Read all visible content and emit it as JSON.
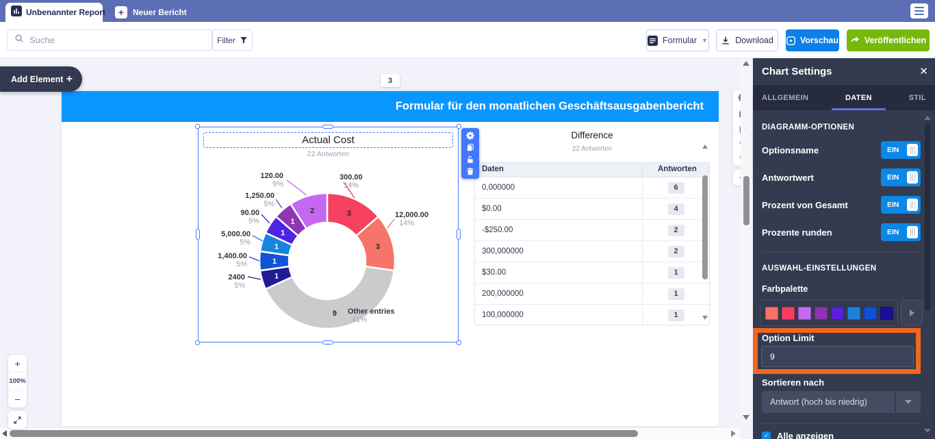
{
  "tabbar": {
    "active_tab": "Unbenannter Report",
    "new_tab_label": "Neuer Bericht"
  },
  "toolbar": {
    "search_placeholder": "Suche",
    "filter_label": "Filter",
    "form_button": "Formular",
    "download_button": "Download",
    "preview_button": "Vorschau",
    "publish_button": "Veröffentlichen"
  },
  "workspace": {
    "add_element_label": "Add Element",
    "page_number": "3",
    "banner_title": "Formular für den monatlichen Geschäftsausgabenbericht",
    "zoom_level": "100%"
  },
  "chart_data": {
    "type": "pie",
    "donut": true,
    "title": "Actual Cost",
    "subtitle": "22 Antworten",
    "total_responses": 22,
    "legend_position": "callout-labels",
    "slices": [
      {
        "label": "300.00",
        "value": 3,
        "pct": "14%",
        "color": "#f5405f"
      },
      {
        "label": "12,000.00",
        "value": 3,
        "pct": "14%",
        "color": "#f7746b"
      },
      {
        "label": "Other entries",
        "value": 9,
        "pct": "41%",
        "color": "#cbcbcd"
      },
      {
        "label": "2400",
        "value": 1,
        "pct": "5%",
        "color": "#201a96"
      },
      {
        "label": "1,400.00",
        "value": 1,
        "pct": "5%",
        "color": "#1353d6"
      },
      {
        "label": "5,000.00",
        "value": 1,
        "pct": "5%",
        "color": "#1586e0"
      },
      {
        "label": "90.00",
        "value": 1,
        "pct": "5%",
        "color": "#4c25e2"
      },
      {
        "label": "1,250.00",
        "value": 1,
        "pct": "5%",
        "color": "#8f35b5"
      },
      {
        "label": "120.00",
        "value": 2,
        "pct": "9%",
        "color": "#c468f2"
      }
    ]
  },
  "table_widget": {
    "title": "Difference",
    "subtitle": "22 Antworten",
    "columns": [
      "Daten",
      "Antworten"
    ],
    "rows": [
      {
        "daten": "0,000000",
        "antworten": "6"
      },
      {
        "daten": "$0.00",
        "antworten": "4"
      },
      {
        "daten": "-$250.00",
        "antworten": "2"
      },
      {
        "daten": "300,000000",
        "antworten": "2"
      },
      {
        "daten": "$30.00",
        "antworten": "1"
      },
      {
        "daten": "200,000000",
        "antworten": "1"
      },
      {
        "daten": "100,000000",
        "antworten": "1"
      }
    ]
  },
  "settings_panel": {
    "title": "Chart Settings",
    "close_label": "✕",
    "tabs": [
      "ALLGEMEIN",
      "DATEN",
      "STIL"
    ],
    "active_tab": "DATEN",
    "section1_title": "DIAGRAMM-OPTIONEN",
    "toggles": [
      {
        "label": "Optionsname",
        "state": "EIN"
      },
      {
        "label": "Antwortwert",
        "state": "EIN"
      },
      {
        "label": "Prozent von Gesamt",
        "state": "EIN"
      },
      {
        "label": "Prozente runden",
        "state": "EIN"
      }
    ],
    "section2_title": "AUSWAHL-EINSTELLUNGEN",
    "palette_label": "Farbpalette",
    "palette_colors": [
      "#f77264",
      "#fb3b64",
      "#c46af2",
      "#8c35b0",
      "#5b1fde",
      "#1b82dc",
      "#0e52d8",
      "#191193"
    ],
    "option_limit_label": "Option Limit",
    "option_limit_value": "9",
    "sort_label": "Sortieren nach",
    "sort_value": "Antwort (hoch bis niedrig)",
    "show_all_label": "Alle anzeigen"
  },
  "colors": {
    "banner_blue": "#0a96ff",
    "highlight_orange": "#f2661d",
    "toggle_on_blue": "#0b87e8",
    "publish_green": "#76b90a",
    "preview_blue": "#0c7fe8",
    "selection_blue": "#4277ff"
  }
}
